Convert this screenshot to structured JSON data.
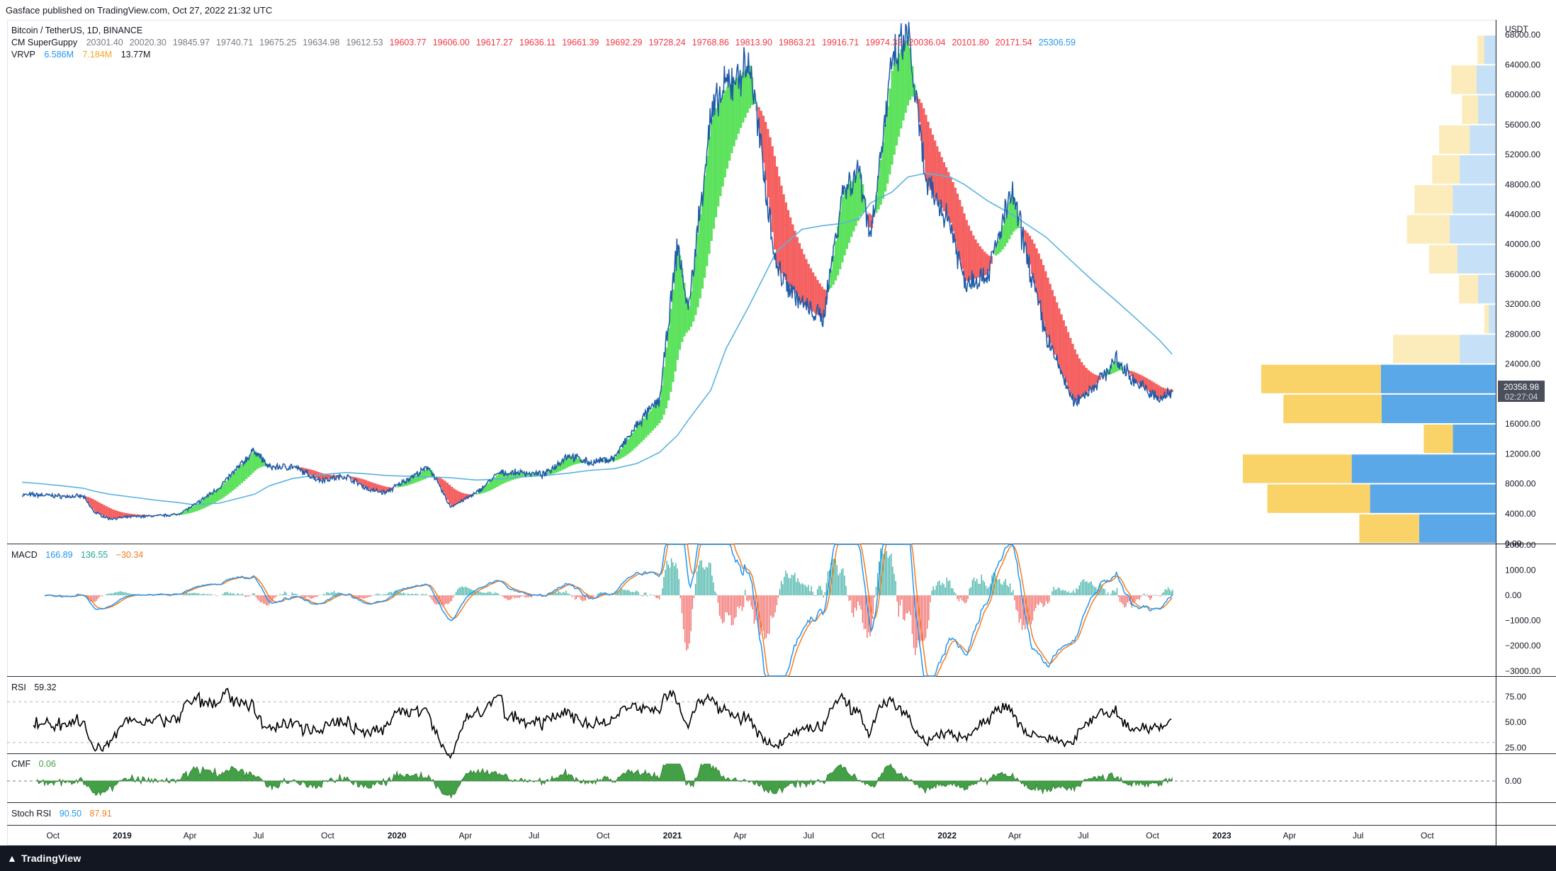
{
  "header": {
    "publisher": "Gasface published on TradingView.com, Oct 27, 2022 21:32 UTC"
  },
  "main_legend": {
    "symbol": "Bitcoin / TetherUS, 1D, BINANCE",
    "guppy_name": "CM SuperGuppy",
    "guppy_values_gray": [
      "20301.40",
      "20020.30",
      "19845.97",
      "19740.71",
      "19675.25",
      "19634.98",
      "19612.53"
    ],
    "guppy_values_red": [
      "19603.77",
      "19606.00",
      "19617.27",
      "19636.11",
      "19661.39",
      "19692.29",
      "19728.24",
      "19768.86",
      "19813.90",
      "19863.21",
      "19916.71",
      "19974.33",
      "20036.04",
      "20101.80",
      "20171.54"
    ],
    "guppy_value_blue": "25306.59",
    "vrvp_name": "VRVP",
    "vrvp_blue": "6.586M",
    "vrvp_yellow": "7.184M",
    "vrvp_total": "13.77M"
  },
  "colors": {
    "price_line": "#1e5aa8",
    "ma_line": "#5bb3e0",
    "guppy_green": "#26d926",
    "guppy_red": "#f22b2b",
    "guppy_gray": "#8f8f8f",
    "vol_blue": "#5ba8e8",
    "vol_yellow": "#f9d268",
    "macd_line": "#2196f3",
    "signal_line": "#f57c1f",
    "hist_pos": "#26a69a",
    "hist_neg": "#ef5350",
    "cmf_fill": "#43a047",
    "rsi_line": "#000000",
    "current_price_bg": "#4a4f5b"
  },
  "price_axis": {
    "currency": "USDT",
    "ticks": [
      "68000.00",
      "64000.00",
      "60000.00",
      "56000.00",
      "52000.00",
      "48000.00",
      "44000.00",
      "40000.00",
      "36000.00",
      "32000.00",
      "28000.00",
      "24000.00",
      "16000.00",
      "12000.00",
      "8000.00",
      "4000.00",
      "0.00"
    ],
    "current_price": "20358.98",
    "countdown": "02:27:04"
  },
  "macd": {
    "label": "MACD",
    "v1": "166.89",
    "v2": "136.55",
    "v3": "−30.34",
    "ticks": [
      "2000.00",
      "1000.00",
      "0.00",
      "−1000.00",
      "−2000.00",
      "−3000.00"
    ]
  },
  "rsi": {
    "label": "RSI",
    "value": "59.32",
    "ticks": [
      "75.00",
      "50.00",
      "25.00"
    ]
  },
  "cmf": {
    "label": "CMF",
    "value": "0.06",
    "ticks": [
      "0.00"
    ]
  },
  "stoch_rsi": {
    "label": "Stoch RSI",
    "k": "90.50",
    "d": "87.91"
  },
  "time_axis": {
    "labels": [
      "Oct",
      "2019",
      "Apr",
      "Jul",
      "Oct",
      "2020",
      "Apr",
      "Jul",
      "Oct",
      "2021",
      "Apr",
      "Jul",
      "Oct",
      "2022",
      "Apr",
      "Jul",
      "Oct",
      "2023",
      "Apr",
      "Jul",
      "Oct"
    ],
    "bold": [
      "2019",
      "2020",
      "2021",
      "2022",
      "2023"
    ]
  },
  "footer": {
    "brand": "TradingView"
  },
  "chart_data": {
    "type": "line",
    "title": "Bitcoin / TetherUS, 1D, BINANCE",
    "y_unit": "USDT",
    "ylim": [
      0,
      70000
    ],
    "x_dates": [
      "2018-08-21",
      "2018-09-15",
      "2018-10-15",
      "2018-11-10",
      "2018-11-25",
      "2018-12-15",
      "2019-01-15",
      "2019-02-15",
      "2019-03-15",
      "2019-04-05",
      "2019-05-10",
      "2019-06-26",
      "2019-07-15",
      "2019-08-15",
      "2019-09-20",
      "2019-10-26",
      "2019-11-25",
      "2019-12-17",
      "2020-01-15",
      "2020-02-13",
      "2020-03-12",
      "2020-04-15",
      "2020-05-15",
      "2020-06-15",
      "2020-07-15",
      "2020-08-15",
      "2020-09-15",
      "2020-10-15",
      "2020-11-15",
      "2020-12-15",
      "2021-01-08",
      "2021-01-22",
      "2021-02-21",
      "2021-03-13",
      "2021-04-14",
      "2021-05-19",
      "2021-06-22",
      "2021-07-20",
      "2021-08-15",
      "2021-09-07",
      "2021-09-21",
      "2021-10-20",
      "2021-11-10",
      "2021-12-04",
      "2022-01-05",
      "2022-01-24",
      "2022-02-24",
      "2022-03-28",
      "2022-05-12",
      "2022-06-18",
      "2022-07-15",
      "2022-08-13",
      "2022-09-10",
      "2022-10-10",
      "2022-10-27"
    ],
    "series": [
      {
        "values": [
          6500,
          6500,
          6300,
          6300,
          4200,
          3300,
          3600,
          3700,
          3900,
          5000,
          7500,
          12500,
          10200,
          10300,
          8500,
          9000,
          7200,
          6800,
          8600,
          10200,
          4900,
          6700,
          9400,
          9500,
          9200,
          11800,
          10800,
          11400,
          15800,
          19300,
          40000,
          31000,
          57000,
          61000,
          64000,
          37000,
          32000,
          30000,
          47000,
          50000,
          41000,
          64000,
          68000,
          48000,
          43000,
          35000,
          36000,
          47000,
          28000,
          18800,
          21000,
          24500,
          21500,
          19200,
          20300
        ]
      },
      {
        "name": "MA",
        "values": [
          8200,
          8000,
          7700,
          7400,
          7000,
          6600,
          6200,
          5800,
          5500,
          5200,
          5400,
          6600,
          7700,
          8700,
          9200,
          9500,
          9300,
          9100,
          9000,
          8900,
          8800,
          8500,
          8600,
          8900,
          9100,
          9400,
          9800,
          10000,
          10700,
          12200,
          14500,
          16500,
          20500,
          26000,
          32000,
          39000,
          42000,
          42500,
          42800,
          43500,
          45500,
          47000,
          49000,
          49500,
          49000,
          48000,
          45800,
          44000,
          41000,
          37500,
          35000,
          32500,
          30000,
          27200,
          25300
        ]
      }
    ],
    "volume_profile": {
      "price_bins": [
        2000,
        6000,
        10000,
        14000,
        18000,
        22000,
        26000,
        30000,
        34000,
        38000,
        42000,
        46000,
        50000,
        54000,
        58000,
        62000,
        66000
      ],
      "buy_volume": [
        1.0,
        1.64,
        1.88,
        0.56,
        1.49,
        1.5,
        0.47,
        0.09,
        0.23,
        0.5,
        0.6,
        0.56,
        0.47,
        0.34,
        0.23,
        0.25,
        0.15
      ],
      "sell_volume": [
        0.78,
        1.34,
        1.42,
        0.38,
        1.28,
        1.56,
        0.87,
        0.06,
        0.25,
        0.37,
        0.56,
        0.5,
        0.36,
        0.4,
        0.21,
        0.33,
        0.09
      ]
    }
  }
}
